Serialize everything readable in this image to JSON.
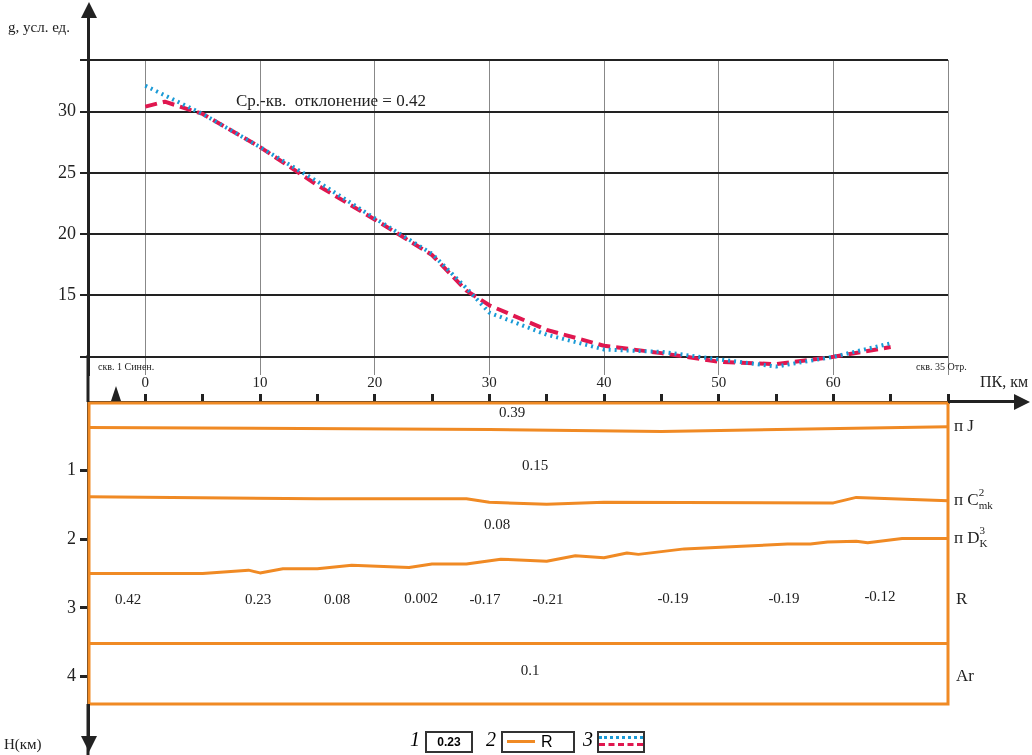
{
  "chart_data": [
    {
      "type": "line",
      "ylabel": "g, усл. ед.",
      "annotations": [
        "Ср.-кв.  отклонение = 0.42"
      ],
      "xlim": [
        -5,
        70
      ],
      "xticks": [
        {
          "value": 0,
          "label": null
        },
        {
          "value": 10,
          "label": null
        },
        {
          "value": 20,
          "label": null
        },
        {
          "value": 30,
          "label": null
        },
        {
          "value": 40,
          "label": null
        },
        {
          "value": 50,
          "label": null
        },
        {
          "value": 60,
          "label": null
        },
        {
          "value": 70,
          "label": null
        }
      ],
      "ylim": [
        8.5,
        34.2
      ],
      "yticks": [
        {
          "value": 10,
          "label": null
        },
        15,
        20,
        25,
        30,
        {
          "value": 34.2,
          "label": null
        }
      ],
      "tick_labels": "y",
      "grid": true,
      "legend": false,
      "marker": "none",
      "series": [
        {
          "color": "#1a9ad6",
          "line_style": "dotted",
          "x": [
            0,
            5,
            10,
            15,
            20,
            25,
            28,
            30,
            35,
            40,
            45,
            50,
            55,
            60,
            65
          ],
          "values": [
            32.1,
            29.8,
            27.1,
            24.3,
            21.3,
            18.4,
            15.6,
            13.6,
            11.8,
            10.6,
            10.4,
            9.8,
            9.2,
            10.0,
            11.1
          ]
        },
        {
          "color": "#e0174f",
          "line_style": "dashed",
          "x": [
            0,
            1.7,
            5,
            10,
            15,
            20,
            25,
            28,
            30,
            35,
            40,
            45,
            50,
            55,
            60,
            65
          ],
          "values": [
            30.4,
            30.8,
            29.8,
            27.1,
            24.0,
            21.2,
            18.3,
            15.4,
            14.2,
            12.2,
            10.9,
            10.3,
            9.6,
            9.4,
            10.0,
            10.8
          ]
        }
      ]
    },
    {
      "type": "line",
      "xlabel": "ПК, км",
      "ylabel": "Н(км)",
      "xlim": [
        -5,
        70
      ],
      "xticks": [
        0,
        {
          "value": 5,
          "label": null
        },
        10,
        {
          "value": 15,
          "label": null
        },
        20,
        {
          "value": 25,
          "label": null
        },
        30,
        {
          "value": 35,
          "label": null
        },
        40,
        {
          "value": 45,
          "label": null
        },
        50,
        {
          "value": 55,
          "label": null
        },
        60,
        {
          "value": 65,
          "label": null
        },
        {
          "value": 70,
          "label": null
        }
      ],
      "ylim": [
        4.4,
        0
      ],
      "yticks": [
        1,
        2,
        3,
        4
      ],
      "grid": false,
      "legend": false,
      "marker": "none",
      "annotations": [
        "скв. 1 Синен.",
        "скв. 35 Отр.",
        "0.39",
        "0.15",
        "0.08",
        "0.42",
        "0.23",
        "0.08",
        "0.002",
        "-0.17",
        "-0.21",
        "-0.19",
        "-0.19",
        "-0.12",
        "0.1",
        "R",
        "Ar",
        "1",
        "0.23",
        "2",
        "R",
        "3"
      ],
      "series": [
        {
          "name": "п J",
          "color": "#f08a24",
          "line_style": "solid",
          "x": [
            -5,
            30,
            45,
            70
          ],
          "values": [
            0.37,
            0.4,
            0.43,
            0.36
          ]
        },
        {
          "name": "п C$^{2}$$_{mk}$",
          "color": "#f08a24",
          "line_style": "solid",
          "x": [
            -5,
            15,
            28,
            30,
            35,
            40,
            60,
            62,
            70
          ],
          "values": [
            1.38,
            1.41,
            1.41,
            1.46,
            1.49,
            1.46,
            1.47,
            1.39,
            1.44
          ]
        },
        {
          "name": "п D$^{3}$$_{K}$",
          "color": "#f08a24",
          "line_style": "solid",
          "x": [
            -5,
            5,
            9,
            10,
            12,
            15,
            18,
            23,
            25,
            28,
            31,
            35,
            37.5,
            40,
            42,
            43,
            47,
            52,
            56,
            58,
            59.5,
            62,
            63,
            66,
            70
          ],
          "values": [
            2.5,
            2.5,
            2.45,
            2.49,
            2.43,
            2.43,
            2.38,
            2.41,
            2.36,
            2.36,
            2.29,
            2.32,
            2.24,
            2.27,
            2.2,
            2.22,
            2.14,
            2.1,
            2.07,
            2.07,
            2.04,
            2.03,
            2.05,
            1.99,
            1.99
          ]
        },
        {
          "color": "#f08a24",
          "line_style": "solid",
          "x": [
            -5,
            70
          ],
          "values": [
            3.52,
            3.52
          ]
        }
      ]
    }
  ]
}
